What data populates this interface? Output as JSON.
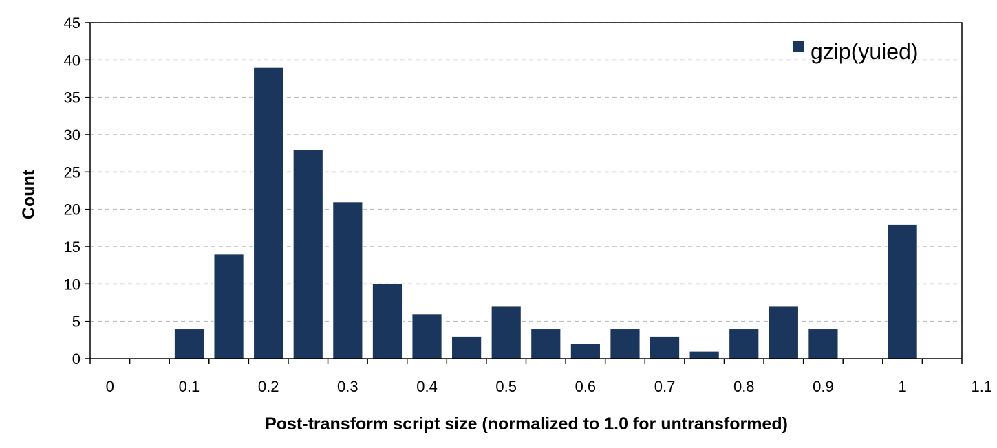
{
  "chart_data": {
    "type": "bar",
    "xlabel": "Post-transform script size (normalized to 1.0 for untransformed)",
    "ylabel": "Count",
    "ylim": [
      0,
      45
    ],
    "xlim": [
      0,
      1.1
    ],
    "yticks": [
      "0",
      "5",
      "10",
      "15",
      "20",
      "25",
      "30",
      "35",
      "40",
      "45"
    ],
    "xticks": [
      "0",
      "0.1",
      "0.2",
      "0.3",
      "0.4",
      "0.5",
      "0.6",
      "0.7",
      "0.8",
      "0.9",
      "1",
      "1.1"
    ],
    "grid": "horizontal dashed",
    "legend_position": "top-right",
    "bar_color": "#1b365d",
    "series": [
      {
        "name": "gzip(yuied)",
        "x": [
          0,
          0.05,
          0.1,
          0.15,
          0.2,
          0.25,
          0.3,
          0.35,
          0.4,
          0.45,
          0.5,
          0.55,
          0.6,
          0.65,
          0.7,
          0.75,
          0.8,
          0.85,
          0.9,
          0.95,
          1.0,
          1.05
        ],
        "values": [
          0,
          0,
          4,
          14,
          39,
          28,
          21,
          10,
          6,
          3,
          7,
          4,
          2,
          4,
          3,
          1,
          4,
          7,
          4,
          0,
          18,
          0
        ]
      }
    ]
  }
}
